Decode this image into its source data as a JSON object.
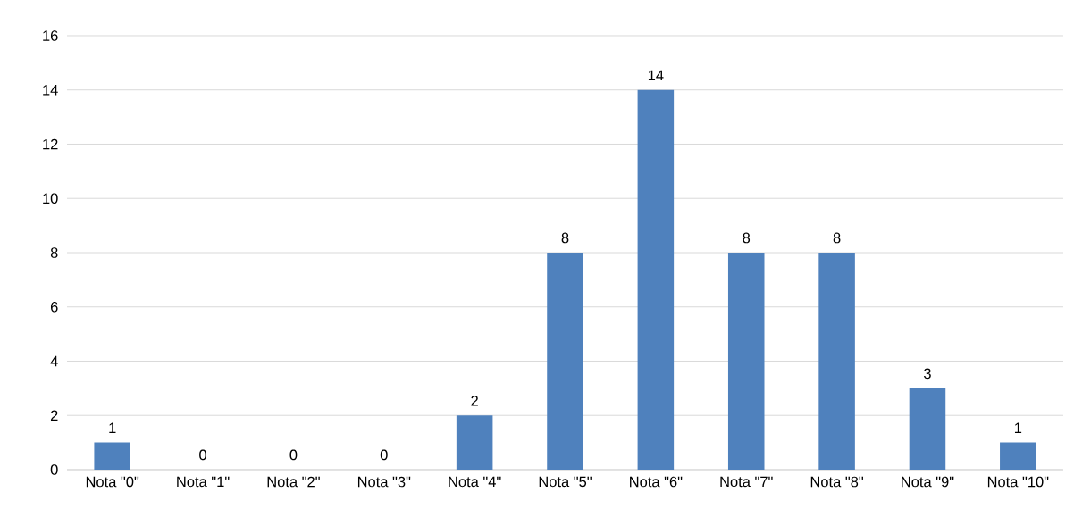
{
  "chart_data": {
    "type": "bar",
    "categories": [
      "Nota \"0\"",
      "Nota \"1\"",
      "Nota \"2\"",
      "Nota \"3\"",
      "Nota \"4\"",
      "Nota \"5\"",
      "Nota \"6\"",
      "Nota \"7\"",
      "Nota \"8\"",
      "Nota \"9\"",
      "Nota \"10\""
    ],
    "values": [
      1,
      0,
      0,
      0,
      2,
      8,
      14,
      8,
      8,
      3,
      1
    ],
    "color": "#4f81bd",
    "ylim": [
      0,
      16
    ],
    "yticks": [
      0,
      2,
      4,
      6,
      8,
      10,
      12,
      14,
      16
    ],
    "grid": "y",
    "data_labels": true
  }
}
